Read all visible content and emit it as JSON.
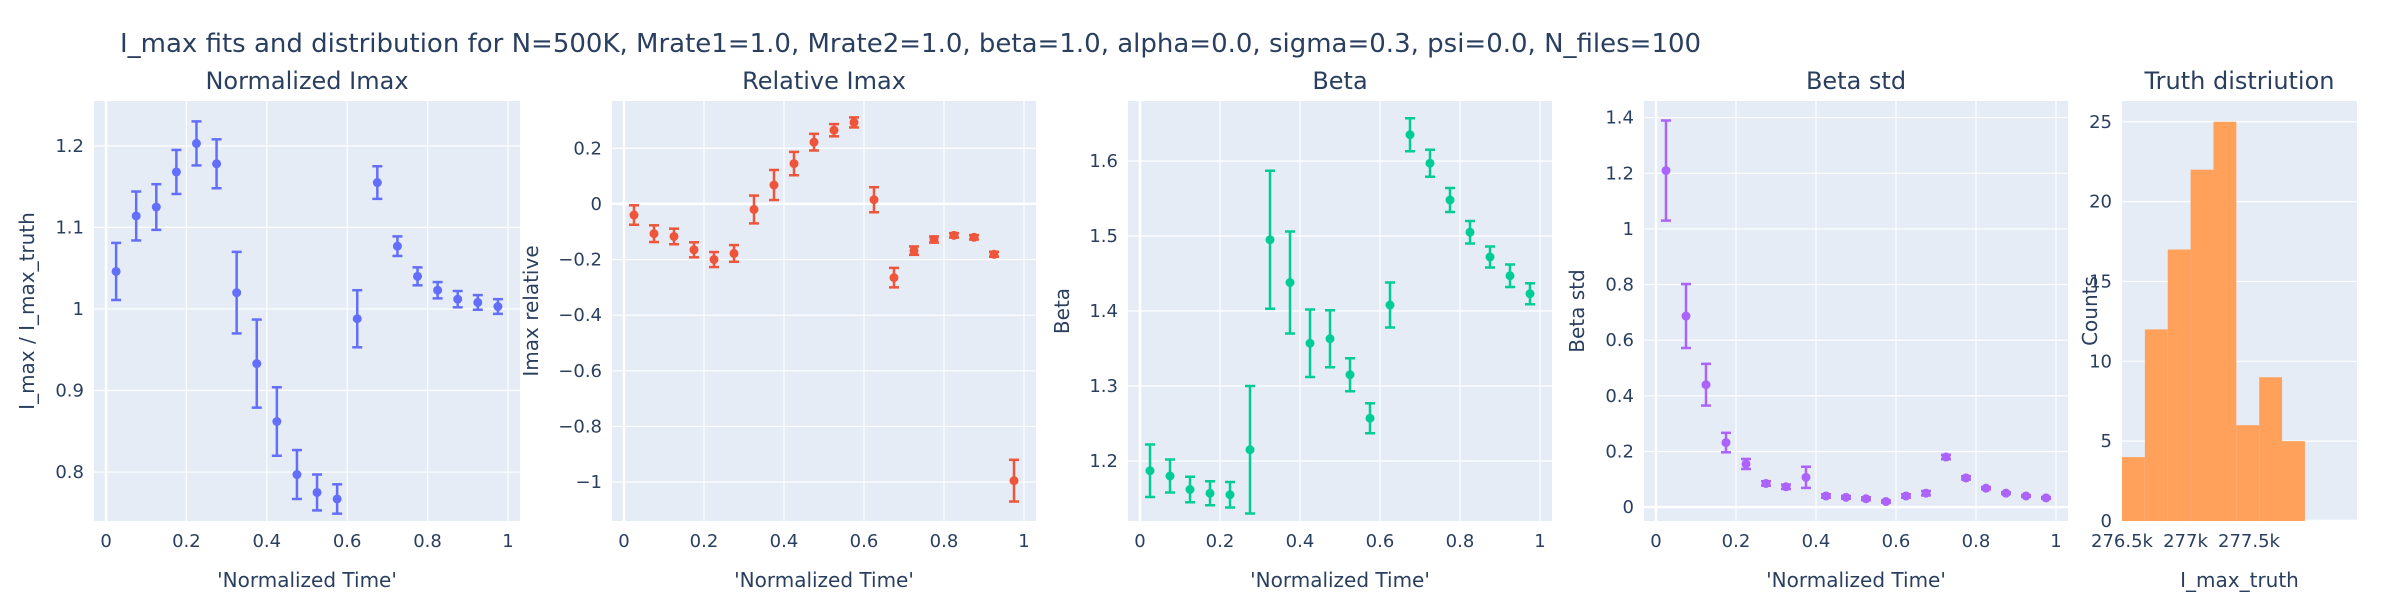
{
  "figure_title": "I_max fits and distribution for N=500K, Mrate1=1.0, Mrate2=1.0, beta=1.0, alpha=0.0, sigma=0.3,  psi=0.0, N_files=100",
  "chart_data": [
    {
      "type": "scatter",
      "title": "Normalized Imax",
      "xlabel": "'Normalized Time'",
      "ylabel": "I_max / I_max_truth",
      "color": "#636efa",
      "xlim": [
        -0.03,
        1.03
      ],
      "ylim": [
        0.74,
        1.255
      ],
      "xticks": [
        0,
        0.2,
        0.4,
        0.6,
        0.8,
        1
      ],
      "xtick_labels": [
        "0",
        "0.2",
        "0.4",
        "0.6",
        "0.8",
        "1"
      ],
      "yticks": [
        0.8,
        0.9,
        1.0,
        1.1,
        1.2
      ],
      "ytick_labels": [
        "0.8",
        "0.9",
        "1",
        "1.1",
        "1.2"
      ],
      "x": [
        0.025,
        0.075,
        0.125,
        0.175,
        0.225,
        0.275,
        0.325,
        0.375,
        0.425,
        0.475,
        0.525,
        0.575,
        0.625,
        0.675,
        0.725,
        0.775,
        0.825,
        0.875,
        0.925,
        0.975
      ],
      "y": [
        1.046,
        1.114,
        1.125,
        1.168,
        1.203,
        1.178,
        1.02,
        0.933,
        0.862,
        0.797,
        0.775,
        0.767,
        0.988,
        1.155,
        1.077,
        1.04,
        1.023,
        1.012,
        1.008,
        1.003
      ],
      "err": [
        0.035,
        0.03,
        0.028,
        0.027,
        0.027,
        0.03,
        0.05,
        0.054,
        0.042,
        0.03,
        0.022,
        0.018,
        0.035,
        0.02,
        0.012,
        0.011,
        0.01,
        0.01,
        0.009,
        0.009
      ]
    },
    {
      "type": "scatter",
      "title": "Relative Imax",
      "xlabel": "'Normalized Time'",
      "ylabel": "Imax relative",
      "color": "#ef553b",
      "xlim": [
        -0.03,
        1.03
      ],
      "ylim": [
        -1.14,
        0.37
      ],
      "xticks": [
        0,
        0.2,
        0.4,
        0.6,
        0.8,
        1
      ],
      "xtick_labels": [
        "0",
        "0.2",
        "0.4",
        "0.6",
        "0.8",
        "1"
      ],
      "yticks": [
        -1,
        -0.8,
        -0.6,
        -0.4,
        -0.2,
        0,
        0.2
      ],
      "ytick_labels": [
        "−1",
        "−0.8",
        "−0.6",
        "−0.4",
        "−0.2",
        "0",
        "0.2"
      ],
      "x": [
        0.025,
        0.075,
        0.125,
        0.175,
        0.225,
        0.275,
        0.325,
        0.375,
        0.425,
        0.475,
        0.525,
        0.575,
        0.625,
        0.675,
        0.725,
        0.775,
        0.825,
        0.875,
        0.925,
        0.975
      ],
      "y": [
        -0.04,
        -0.107,
        -0.117,
        -0.165,
        -0.2,
        -0.178,
        -0.02,
        0.068,
        0.145,
        0.222,
        0.265,
        0.293,
        0.015,
        -0.265,
        -0.168,
        -0.128,
        -0.113,
        -0.12,
        -0.181,
        -0.995
      ],
      "err": [
        0.035,
        0.03,
        0.028,
        0.027,
        0.027,
        0.03,
        0.05,
        0.054,
        0.042,
        0.03,
        0.022,
        0.018,
        0.045,
        0.035,
        0.015,
        0.011,
        0.008,
        0.008,
        0.009,
        0.075
      ]
    },
    {
      "type": "scatter",
      "title": "Beta",
      "xlabel": "'Normalized Time'",
      "ylabel": "Beta",
      "color": "#00cc96",
      "xlim": [
        -0.03,
        1.03
      ],
      "ylim": [
        1.12,
        1.68
      ],
      "xticks": [
        0,
        0.2,
        0.4,
        0.6,
        0.8,
        1
      ],
      "xtick_labels": [
        "0",
        "0.2",
        "0.4",
        "0.6",
        "0.8",
        "1"
      ],
      "yticks": [
        1.2,
        1.3,
        1.4,
        1.5,
        1.6
      ],
      "ytick_labels": [
        "1.2",
        "1.3",
        "1.4",
        "1.5",
        "1.6"
      ],
      "x": [
        0.025,
        0.075,
        0.125,
        0.175,
        0.225,
        0.275,
        0.325,
        0.375,
        0.425,
        0.475,
        0.525,
        0.575,
        0.625,
        0.675,
        0.725,
        0.775,
        0.825,
        0.875,
        0.925,
        0.975
      ],
      "y": [
        1.187,
        1.18,
        1.162,
        1.157,
        1.155,
        1.215,
        1.495,
        1.438,
        1.357,
        1.363,
        1.315,
        1.257,
        1.408,
        1.635,
        1.597,
        1.548,
        1.505,
        1.472,
        1.447,
        1.423
      ],
      "err": [
        0.035,
        0.022,
        0.017,
        0.016,
        0.017,
        0.085,
        0.092,
        0.068,
        0.045,
        0.038,
        0.022,
        0.02,
        0.03,
        0.022,
        0.018,
        0.016,
        0.015,
        0.014,
        0.015,
        0.014
      ]
    },
    {
      "type": "scatter",
      "title": "Beta std",
      "xlabel": "'Normalized Time'",
      "ylabel": "Beta std",
      "color": "#ab63fa",
      "xlim": [
        -0.03,
        1.03
      ],
      "ylim": [
        -0.05,
        1.46
      ],
      "xticks": [
        0,
        0.2,
        0.4,
        0.6,
        0.8,
        1
      ],
      "xtick_labels": [
        "0",
        "0.2",
        "0.4",
        "0.6",
        "0.8",
        "1"
      ],
      "yticks": [
        0,
        0.2,
        0.4,
        0.6,
        0.8,
        1,
        1.2,
        1.4
      ],
      "ytick_labels": [
        "0",
        "0.2",
        "0.4",
        "0.6",
        "0.8",
        "1",
        "1.2",
        "1.4"
      ],
      "x": [
        0.025,
        0.075,
        0.125,
        0.175,
        0.225,
        0.275,
        0.325,
        0.375,
        0.425,
        0.475,
        0.525,
        0.575,
        0.625,
        0.675,
        0.725,
        0.775,
        0.825,
        0.875,
        0.925,
        0.975
      ],
      "y": [
        1.21,
        0.687,
        0.44,
        0.232,
        0.155,
        0.085,
        0.073,
        0.107,
        0.04,
        0.035,
        0.03,
        0.02,
        0.04,
        0.05,
        0.18,
        0.105,
        0.068,
        0.05,
        0.04,
        0.033
      ],
      "err": [
        0.18,
        0.115,
        0.075,
        0.035,
        0.018,
        0.008,
        0.008,
        0.038,
        0.006,
        0.005,
        0.005,
        0.004,
        0.006,
        0.008,
        0.008,
        0.006,
        0.004,
        0.003,
        0.003,
        0.003
      ]
    },
    {
      "type": "bar",
      "title": "Truth distriution",
      "xlabel": "I_max_truth",
      "ylabel": "Counts",
      "color": "#ffa15a",
      "xlim": [
        276.5,
        278.35
      ],
      "ylim": [
        0,
        26.3
      ],
      "xticks": [
        276.5,
        277,
        277.5
      ],
      "xtick_labels": [
        "276.5k",
        "277k",
        "277.5k"
      ],
      "yticks": [
        0,
        5,
        10,
        15,
        20,
        25
      ],
      "ytick_labels": [
        "0",
        "5",
        "10",
        "15",
        "20",
        "25"
      ],
      "bin_edges": [
        276.5,
        276.68,
        276.86,
        277.04,
        277.22,
        277.4,
        277.58,
        277.76,
        277.94,
        278.12,
        278.35
      ],
      "counts": [
        4,
        12,
        17,
        22,
        25,
        6,
        9,
        5,
        0,
        0
      ]
    }
  ]
}
